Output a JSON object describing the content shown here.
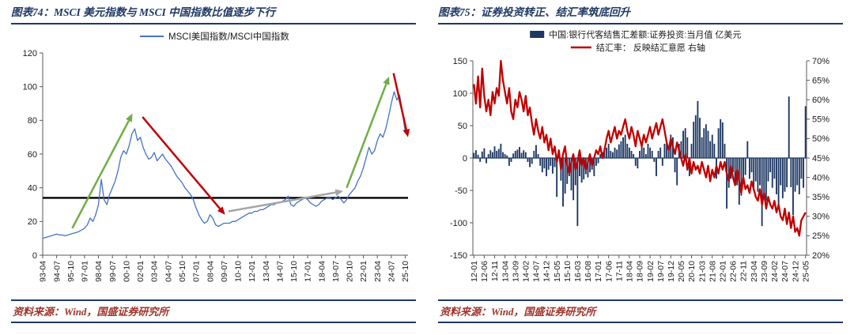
{
  "colors": {
    "accent_navy": "#1F3864",
    "line_blue": "#4472C4",
    "bar_navy": "#1F3864",
    "line_red": "#C00000",
    "arrow_green": "#70AD47",
    "arrow_gray": "#A6A6A6",
    "reference_black": "#000000",
    "source_text": "#A0342B",
    "axis_line": "#595959",
    "axis_text": "#1a1a1a"
  },
  "figures": [
    {
      "title": "图表74：MSCI 美元指数与 MSCI 中国指数比值逐步下行",
      "source": "资料来源：Wind，国盛证券研究所"
    },
    {
      "title": "图表75：证券投资转正、结汇率筑底回升",
      "source": "资料来源：Wind，国盛证券研究所"
    }
  ],
  "chart_data": [
    {
      "type": "line",
      "title": "图表74：MSCI 美元指数与 MSCI 中国指数比值逐步下行",
      "legend_position": "top",
      "grid": false,
      "xlim": [
        1993.25,
        2026.0
      ],
      "ylim": [
        0,
        120
      ],
      "y_ticks": [
        0,
        20,
        40,
        60,
        80,
        100,
        120
      ],
      "x_tick_labels": [
        "93-04",
        "94-07",
        "95-10",
        "97-01",
        "98-04",
        "99-07",
        "00-10",
        "02-01",
        "03-04",
        "04-07",
        "05-10",
        "07-01",
        "08-04",
        "09-07",
        "10-10",
        "12-01",
        "13-04",
        "14-07",
        "15-10",
        "17-01",
        "18-04",
        "19-07",
        "20-10",
        "22-01",
        "23-04",
        "24-07",
        "25-10"
      ],
      "x_start": 1993.25,
      "x_step": 0.25,
      "reference_line": {
        "y": 34,
        "color": "#000000"
      },
      "series": [
        {
          "name": "MSCI美国指数/MSCI中国指数",
          "color": "#4472C4",
          "values": [
            10,
            10.5,
            11,
            11.5,
            12,
            12.5,
            12,
            12,
            11.5,
            12,
            12.5,
            13,
            13.5,
            14,
            15,
            16,
            18,
            22,
            20,
            24,
            30,
            45,
            33,
            30,
            36,
            40,
            44,
            50,
            58,
            62,
            60,
            65,
            72,
            75,
            68,
            70,
            64,
            60,
            57,
            58,
            61,
            56,
            58,
            60,
            57,
            55,
            53,
            50,
            47,
            45,
            43,
            40,
            38,
            36,
            33,
            28,
            24,
            21,
            19,
            20,
            24,
            22,
            18,
            17,
            18,
            19,
            19,
            19,
            20,
            20,
            21,
            22,
            23,
            24,
            25,
            25,
            26,
            26,
            27,
            27,
            28,
            29,
            30,
            30,
            31,
            31,
            32,
            33,
            35,
            30,
            29,
            31,
            32,
            33,
            34,
            33,
            31,
            30,
            29,
            30,
            32,
            33,
            34,
            34,
            33,
            34,
            35,
            33,
            31,
            33,
            36,
            38,
            40,
            44,
            47,
            52,
            58,
            64,
            60,
            62,
            68,
            72,
            70,
            75,
            82,
            90,
            97,
            92,
            95,
            85,
            73
          ]
        }
      ],
      "annotations": [
        {
          "kind": "arrow",
          "from": [
            1995.9,
            16
          ],
          "to": [
            2001.3,
            84
          ],
          "color": "#70AD47"
        },
        {
          "kind": "arrow",
          "from": [
            2002.2,
            82
          ],
          "to": [
            2009.6,
            24
          ],
          "color": "#C00000"
        },
        {
          "kind": "arrow",
          "from": [
            2009.9,
            26
          ],
          "to": [
            2020.2,
            38
          ],
          "color": "#A6A6A6"
        },
        {
          "kind": "arrow",
          "from": [
            2020.5,
            40
          ],
          "to": [
            2024.3,
            106
          ],
          "color": "#70AD47"
        },
        {
          "kind": "arrow",
          "from": [
            2024.7,
            108
          ],
          "to": [
            2026.0,
            70
          ],
          "color": "#C00000"
        }
      ]
    },
    {
      "type": "combo",
      "title": "图表75：证券投资转正、结汇率筑底回升",
      "legend_position": "top",
      "grid": false,
      "left_ylim": [
        -150,
        150
      ],
      "left_y_ticks": [
        -150,
        -100,
        -50,
        0,
        50,
        100,
        150
      ],
      "right_ylim": [
        20,
        70
      ],
      "right_y_ticks": [
        20,
        25,
        30,
        35,
        40,
        45,
        50,
        55,
        60,
        65,
        70
      ],
      "x_month_start": "12-01",
      "x_tick_labels": [
        "12-01",
        "12-06",
        "12-11",
        "13-04",
        "13-09",
        "14-02",
        "14-07",
        "14-12",
        "15-05",
        "15-10",
        "16-03",
        "16-08",
        "17-01",
        "17-06",
        "17-11",
        "18-04",
        "18-09",
        "19-02",
        "19-07",
        "19-12",
        "20-05",
        "20-10",
        "21-03",
        "21-08",
        "22-01",
        "22-06",
        "22-11",
        "23-04",
        "23-09",
        "24-02",
        "24-07",
        "24-12",
        "25-05"
      ],
      "series": [
        {
          "name": "中国:银行代客结售汇差额:证券投资:当月值 亿美元",
          "type": "bar",
          "axis": "left",
          "color": "#1F3864",
          "values": [
            8,
            12,
            5,
            -6,
            10,
            15,
            -8,
            6,
            12,
            9,
            18,
            11,
            14,
            22,
            9,
            6,
            4,
            -12,
            -6,
            7,
            11,
            13,
            17,
            8,
            12,
            9,
            -6,
            -14,
            -9,
            11,
            20,
            6,
            -12,
            -22,
            -16,
            -28,
            -18,
            -12,
            -24,
            -14,
            -60,
            12,
            -35,
            -75,
            -55,
            -40,
            -28,
            -50,
            -65,
            -42,
            -105,
            -28,
            -38,
            -33,
            -25,
            -30,
            -22,
            -18,
            -28,
            -12,
            -8,
            6,
            9,
            13,
            16,
            22,
            11,
            9,
            16,
            13,
            21,
            26,
            32,
            36,
            22,
            16,
            11,
            6,
            -12,
            -16,
            11,
            22,
            16,
            6,
            22,
            16,
            11,
            -6,
            -28,
            11,
            16,
            -12,
            22,
            26,
            16,
            36,
            32,
            -22,
            -42,
            22,
            26,
            42,
            46,
            32,
            -28,
            22,
            56,
            66,
            88,
            62,
            32,
            46,
            52,
            42,
            26,
            36,
            22,
            -32,
            46,
            60,
            55,
            22,
            -78,
            -46,
            -32,
            -22,
            -36,
            -42,
            -72,
            -58,
            -36,
            -26,
            26,
            -32,
            -22,
            -46,
            -36,
            -52,
            -42,
            -105,
            -58,
            -66,
            -36,
            -22,
            -46,
            -32,
            -56,
            -78,
            -42,
            -62,
            -52,
            -45,
            95,
            -45,
            -88,
            -52,
            -42,
            -56,
            -32,
            -46,
            80
          ]
        },
        {
          "name": "结汇率： 反映结汇意愿 右轴",
          "type": "line",
          "axis": "right",
          "color": "#C00000",
          "values": [
            64,
            59,
            66,
            58,
            68,
            61,
            57,
            60,
            56,
            62,
            59,
            63,
            61,
            70,
            65,
            62,
            59,
            63,
            57,
            55,
            60,
            58,
            62,
            60,
            57,
            61,
            56,
            58,
            54,
            51,
            55,
            52,
            50,
            53,
            49,
            51,
            47,
            50,
            46,
            48,
            44,
            47,
            42,
            46,
            48,
            43,
            41,
            44,
            46,
            42,
            44,
            47,
            43,
            45,
            42,
            44,
            46,
            43,
            45,
            47,
            46,
            48,
            45,
            47,
            50,
            52,
            49,
            51,
            53,
            50,
            52,
            51,
            53,
            55,
            52,
            50,
            53,
            51,
            48,
            52,
            50,
            48,
            51,
            49,
            51,
            53,
            50,
            52,
            54,
            51,
            53,
            55,
            52,
            49,
            47,
            50,
            48,
            46,
            49,
            47,
            45,
            43,
            46,
            42,
            45,
            41,
            44,
            42,
            43,
            41,
            44,
            42,
            40,
            43,
            39,
            42,
            40,
            43,
            41,
            44,
            42,
            44,
            41,
            39,
            43,
            40,
            38,
            42,
            39,
            36,
            40,
            37,
            38,
            36,
            39,
            37,
            35,
            34,
            37,
            33,
            36,
            32,
            35,
            33,
            32,
            34,
            31,
            33,
            30,
            29,
            32,
            28,
            31,
            27,
            30,
            26,
            27,
            25,
            29,
            30,
            31
          ]
        }
      ]
    }
  ]
}
